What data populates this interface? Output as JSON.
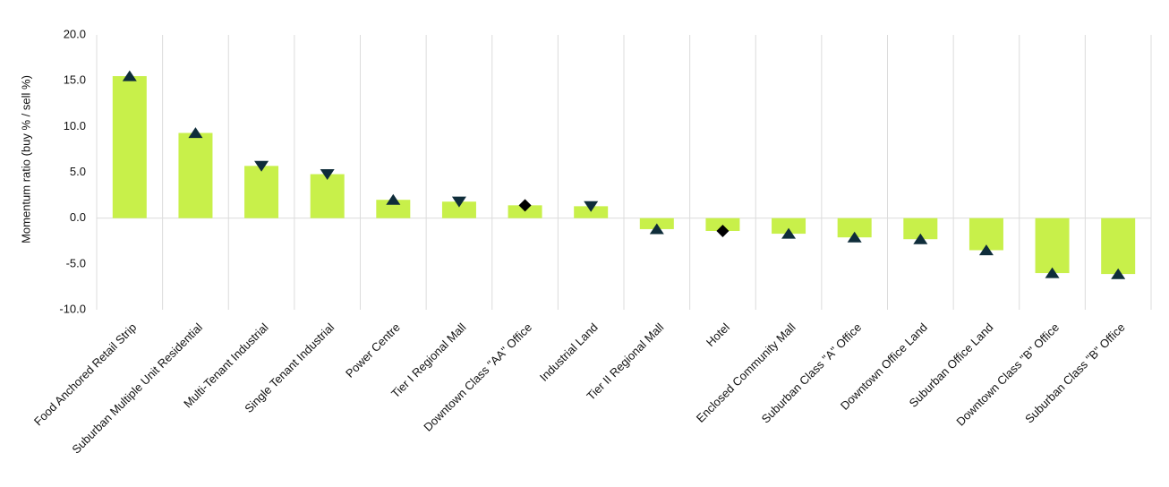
{
  "chart_data": {
    "type": "bar",
    "y_label": "Momentum ratio (buy % / sell %)",
    "categories": [
      "Food Anchored Retail Strip",
      "Suburban Multiple Unit Residential",
      "Multi-Tenant Industrial",
      "Single Tenant Industrial",
      "Power Centre",
      "Tier I Regional Mall",
      "Downtown Class \"AA\" Office",
      "Industrial Land",
      "Tier II Regional Mall",
      "Hotel",
      "Enclosed Community Mall",
      "Suburban Class \"A\" Office",
      "Downtown Office Land",
      "Suburban Office Land",
      "Downtown Class \"B\" Office",
      "Suburban Class \"B\" Office"
    ],
    "values": [
      15.5,
      9.3,
      5.7,
      4.8,
      2.0,
      1.8,
      1.4,
      1.3,
      -1.2,
      -1.4,
      -1.7,
      -2.1,
      -2.3,
      -3.5,
      -6.0,
      -6.1
    ],
    "markers": [
      "up",
      "up",
      "down",
      "down",
      "up",
      "down",
      "diamond",
      "down",
      "up",
      "diamond",
      "up",
      "up",
      "up",
      "up",
      "up",
      "up"
    ],
    "color": "#c8f04a",
    "marker_color": "#0f2d3a",
    "ylim": [
      -10,
      20
    ],
    "yticks": [
      {
        "value": -10,
        "label": "-10.0"
      },
      {
        "value": -5,
        "label": "-5.0"
      },
      {
        "value": 0,
        "label": "0.0"
      },
      {
        "value": 5,
        "label": "5.0"
      },
      {
        "value": 10,
        "label": "10.0"
      },
      {
        "value": 15,
        "label": "15.0"
      },
      {
        "value": 20,
        "label": "20.0"
      }
    ],
    "grid": true
  }
}
